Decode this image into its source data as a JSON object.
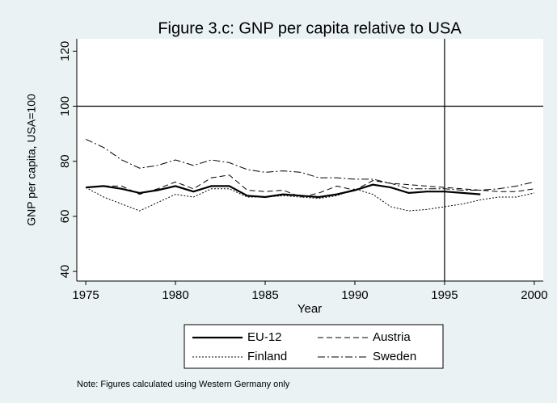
{
  "chart_data": {
    "type": "line",
    "title": "Figure 3.c: GNP per capita relative to USA",
    "x_label": "Year",
    "y_label": "GNP per capita, USA=100",
    "note": "Note: Figures calculated using Western Germany only",
    "x": [
      1975,
      1976,
      1977,
      1978,
      1979,
      1980,
      1981,
      1982,
      1983,
      1984,
      1985,
      1986,
      1987,
      1988,
      1989,
      1990,
      1991,
      1992,
      1993,
      1994,
      1995,
      1996,
      1997,
      1998,
      1999,
      2000
    ],
    "series": [
      {
        "name": "EU-12",
        "color": "#000000",
        "width": 2.2,
        "dash": "",
        "values": [
          70.5,
          71,
          70,
          68.5,
          69.5,
          71,
          69,
          71,
          71,
          67.5,
          67,
          68,
          67.5,
          67,
          68,
          69.5,
          71.5,
          70.5,
          68.5,
          69,
          69,
          68.5,
          68,
          null,
          null,
          null
        ]
      },
      {
        "name": "Austria",
        "color": "#000000",
        "width": 1,
        "dash": "7 4",
        "values": [
          70.5,
          71,
          71,
          68,
          70,
          72.5,
          70,
          74,
          75,
          69.5,
          69,
          69.5,
          67,
          68.5,
          71,
          69.5,
          73,
          72,
          71.5,
          71,
          70.5,
          70,
          69.5,
          69,
          69,
          70
        ]
      },
      {
        "name": "Finland",
        "color": "#000000",
        "width": 1,
        "dash": "2 2",
        "values": [
          70.5,
          67,
          64.5,
          62,
          65,
          68,
          67,
          70,
          70,
          67,
          67,
          67.5,
          67,
          66.5,
          67.5,
          70,
          68,
          63.5,
          62,
          62.5,
          63.5,
          64.5,
          66,
          67,
          67,
          68.5
        ]
      },
      {
        "name": "Sweden",
        "color": "#000000",
        "width": 1,
        "dash": "9 3 2 3",
        "values": [
          88,
          85,
          80.5,
          77.5,
          78.5,
          80.5,
          78.5,
          80.5,
          79.5,
          77,
          76,
          76.5,
          76,
          74,
          74,
          73.5,
          73.5,
          72,
          70,
          70,
          70,
          69.5,
          69.5,
          70,
          71,
          72.5
        ]
      }
    ],
    "xlim": [
      1974.5,
      2000.5
    ],
    "xticks": [
      1975,
      1980,
      1985,
      1990,
      1995,
      2000
    ],
    "ylim": [
      36.5,
      124.5
    ],
    "yticks": [
      40,
      60,
      80,
      100,
      120
    ],
    "hline": 100,
    "vline": 1995,
    "grid": false,
    "legend": "bottom"
  }
}
